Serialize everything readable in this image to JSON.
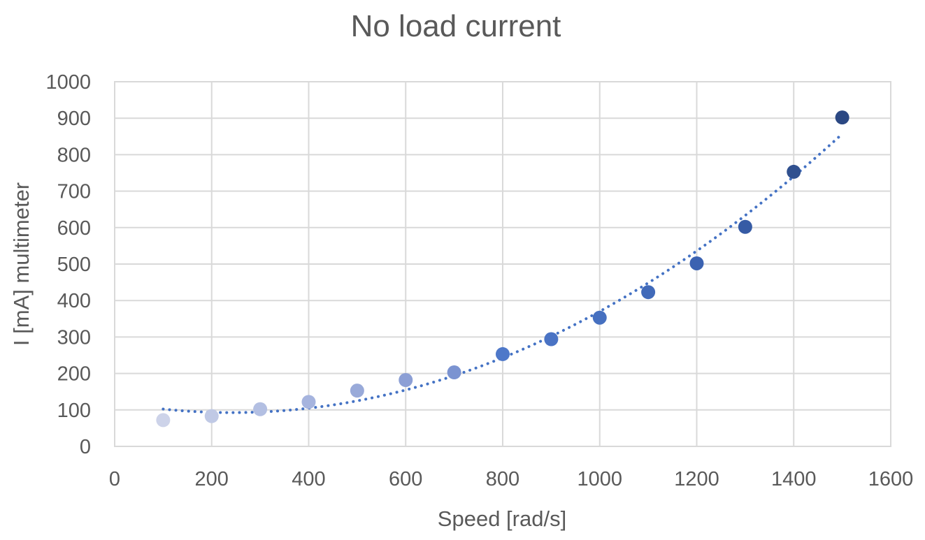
{
  "chart_data": {
    "type": "scatter",
    "title": "No load current",
    "xlabel": "Speed [rad/s]",
    "ylabel": "I [mA] multimeter",
    "xlim": [
      0,
      1600
    ],
    "ylim": [
      0,
      1000
    ],
    "x_ticks": [
      0,
      200,
      400,
      600,
      800,
      1000,
      1200,
      1400,
      1600
    ],
    "y_ticks": [
      0,
      100,
      200,
      300,
      400,
      500,
      600,
      700,
      800,
      900,
      1000
    ],
    "grid": true,
    "legend": "none",
    "series": [
      {
        "x": [
          100,
          200,
          300,
          400,
          500,
          600,
          700,
          800,
          900,
          1000,
          1100,
          1200,
          1300,
          1400,
          1500
        ],
        "y": [
          72,
          83,
          102,
          122,
          153,
          182,
          203,
          253,
          294,
          353,
          423,
          502,
          602,
          753,
          902
        ],
        "colors": [
          "#cdd3e9",
          "#c0c9e5",
          "#b3bfe2",
          "#a6b4de",
          "#99aad9",
          "#8c9fd5",
          "#7b93d1",
          "#4e78c9",
          "#4a73c4",
          "#4670c0",
          "#416ab9",
          "#3b62b1",
          "#365ba5",
          "#30508f",
          "#2b4883"
        ]
      }
    ],
    "trendline": {
      "type": "polynomial",
      "order": 2,
      "from": 100,
      "to": 1500,
      "color": "#4472c4"
    }
  }
}
